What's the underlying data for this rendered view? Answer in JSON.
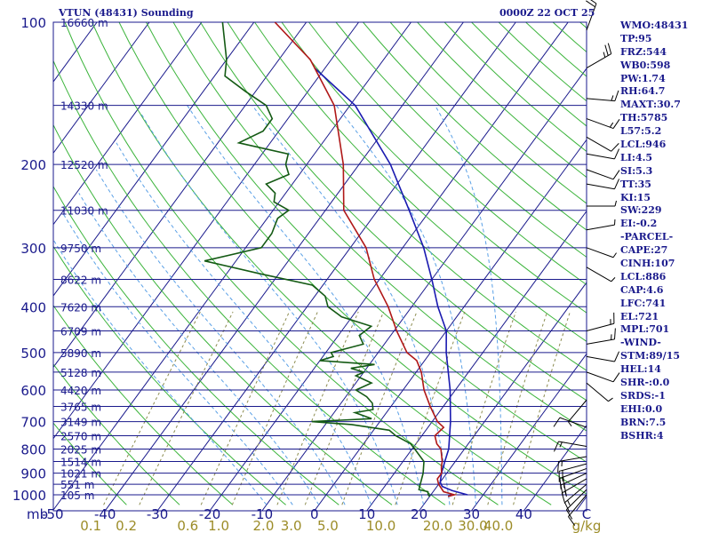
{
  "header": {
    "title": "VTUN (48431) Sounding",
    "time": "0000Z 22 OCT 25"
  },
  "indices": [
    "WMO:48431",
    "TP:95",
    "FRZ:544",
    "WB0:598",
    "PW:1.74",
    "RH:64.7",
    "MAXT:30.7",
    "TH:5785",
    "L57:5.2",
    "LCL:946",
    "LI:4.5",
    "SI:5.3",
    "TT:35",
    "KI:15",
    "SW:229",
    "EI:-0.2",
    "-PARCEL-",
    "CAPE:27",
    "CINH:107",
    "LCL:886",
    "CAP:4.6",
    "LFC:741",
    "EL:721",
    "MPL:701",
    "-WIND-",
    "STM:89/15",
    "HEL:14",
    "SHR-:0.0",
    "SRDS:-1",
    "EHI:0.0",
    "BRN:7.5",
    "BSHR:4"
  ],
  "colors": {
    "isobar": "#1a1a8c",
    "isotherm": "#1a1a8c",
    "dry_adiabat": "#3cb43c",
    "moist_adiabat": "#5aa0e6",
    "mixing_ratio": "#8c8c50",
    "temperature": "#b01818",
    "dewpoint": "#145a14",
    "parcel": "#1a1ab0",
    "label_blue": "#1a1a8c",
    "label_olive": "#9c8c28",
    "wind_barb": "#000000"
  },
  "chart_data": {
    "type": "skew-t",
    "x_unit_label": "C",
    "y_unit_label": "mb",
    "mixing_ratio_unit_label": "g/kg",
    "temperature_ticks": [
      "-50",
      "-40",
      "-30",
      "-20",
      "-10",
      "0",
      "10",
      "20",
      "30",
      "40",
      "C"
    ],
    "mixing_ratio_ticks": [
      "0.1",
      "0.2",
      "0.6",
      "1.0",
      "2.0",
      "3.0",
      "5.0",
      "10.0",
      "20.0",
      "30.0",
      "40.0"
    ],
    "pressure_ticks": [
      {
        "p": 100,
        "label": "100"
      },
      {
        "p": 200,
        "label": "200"
      },
      {
        "p": 300,
        "label": "300"
      },
      {
        "p": 400,
        "label": "400"
      },
      {
        "p": 500,
        "label": "500"
      },
      {
        "p": 600,
        "label": "600"
      },
      {
        "p": 700,
        "label": "700"
      },
      {
        "p": 800,
        "label": "800"
      },
      {
        "p": 900,
        "label": "900"
      },
      {
        "p": 1000,
        "label": "1000"
      }
    ],
    "height_labels": [
      {
        "p": 100,
        "label": "16660 m"
      },
      {
        "p": 150,
        "label": "14330 m"
      },
      {
        "p": 200,
        "label": "12520 m"
      },
      {
        "p": 250,
        "label": "11030 m"
      },
      {
        "p": 300,
        "label": "9750 m"
      },
      {
        "p": 350,
        "label": "8622 m"
      },
      {
        "p": 400,
        "label": "7620 m"
      },
      {
        "p": 450,
        "label": "6709 m"
      },
      {
        "p": 500,
        "label": "5890 m"
      },
      {
        "p": 550,
        "label": "5128 m"
      },
      {
        "p": 600,
        "label": "4420 m"
      },
      {
        "p": 650,
        "label": "3765 m"
      },
      {
        "p": 700,
        "label": "3149 m"
      },
      {
        "p": 750,
        "label": "2570 m"
      },
      {
        "p": 800,
        "label": "2025 m"
      },
      {
        "p": 850,
        "label": "1514 m"
      },
      {
        "p": 900,
        "label": "1021 m"
      },
      {
        "p": 950,
        "label": "551 m"
      },
      {
        "p": 1000,
        "label": "105 m"
      }
    ],
    "temperature_profile": [
      [
        1008,
        23.5
      ],
      [
        1000,
        24.5
      ],
      [
        985,
        22
      ],
      [
        950,
        20
      ],
      [
        925,
        19
      ],
      [
        900,
        19
      ],
      [
        870,
        18
      ],
      [
        850,
        17.5
      ],
      [
        800,
        15.5
      ],
      [
        780,
        14
      ],
      [
        750,
        12.5
      ],
      [
        720,
        13
      ],
      [
        700,
        11
      ],
      [
        650,
        7.5
      ],
      [
        600,
        4
      ],
      [
        550,
        1
      ],
      [
        520,
        -1.5
      ],
      [
        500,
        -4.5
      ],
      [
        450,
        -9.5
      ],
      [
        400,
        -14.5
      ],
      [
        350,
        -21
      ],
      [
        300,
        -27
      ],
      [
        250,
        -36.5
      ],
      [
        200,
        -43
      ],
      [
        150,
        -53
      ],
      [
        120,
        -64
      ],
      [
        100,
        -76
      ]
    ],
    "dewpoint_profile": [
      [
        1008,
        20
      ],
      [
        1000,
        19.5
      ],
      [
        985,
        19
      ],
      [
        975,
        17
      ],
      [
        950,
        16.5
      ],
      [
        900,
        15.5
      ],
      [
        850,
        14
      ],
      [
        800,
        10.5
      ],
      [
        780,
        9
      ],
      [
        750,
        5
      ],
      [
        730,
        3
      ],
      [
        710,
        -5
      ],
      [
        700,
        -13
      ],
      [
        690,
        -2
      ],
      [
        670,
        -6
      ],
      [
        660,
        -3
      ],
      [
        640,
        -4
      ],
      [
        620,
        -6
      ],
      [
        600,
        -9
      ],
      [
        580,
        -7
      ],
      [
        560,
        -11
      ],
      [
        550,
        -10
      ],
      [
        540,
        -13
      ],
      [
        530,
        -9
      ],
      [
        520,
        -20
      ],
      [
        510,
        -18
      ],
      [
        500,
        -19
      ],
      [
        480,
        -14
      ],
      [
        460,
        -16
      ],
      [
        440,
        -15
      ],
      [
        420,
        -22
      ],
      [
        400,
        -26
      ],
      [
        380,
        -28
      ],
      [
        360,
        -32
      ],
      [
        340,
        -44
      ],
      [
        320,
        -56
      ],
      [
        300,
        -47
      ],
      [
        280,
        -47
      ],
      [
        260,
        -48
      ],
      [
        250,
        -47
      ],
      [
        240,
        -51
      ],
      [
        230,
        -52
      ],
      [
        220,
        -55
      ],
      [
        210,
        -52
      ],
      [
        200,
        -54
      ],
      [
        190,
        -55
      ],
      [
        180,
        -66
      ],
      [
        170,
        -63
      ],
      [
        160,
        -63
      ],
      [
        150,
        -66
      ],
      [
        140,
        -72
      ],
      [
        130,
        -78
      ],
      [
        120,
        -80
      ],
      [
        100,
        -86
      ]
    ],
    "parcel_profile": [
      [
        1000,
        27
      ],
      [
        980,
        23.5
      ],
      [
        960,
        21
      ],
      [
        940,
        20
      ],
      [
        900,
        19
      ],
      [
        850,
        18
      ],
      [
        800,
        17
      ],
      [
        700,
        13.5
      ],
      [
        600,
        9
      ],
      [
        500,
        3
      ],
      [
        450,
        0
      ],
      [
        400,
        -5
      ],
      [
        350,
        -10
      ],
      [
        300,
        -16
      ],
      [
        250,
        -24
      ],
      [
        200,
        -34
      ],
      [
        150,
        -49
      ],
      [
        125,
        -62
      ]
    ],
    "wind_barbs": [
      {
        "p": 104,
        "dir": 20,
        "spd": 20
      },
      {
        "p": 125,
        "dir": 60,
        "spd": 25
      },
      {
        "p": 145,
        "dir": 95,
        "spd": 15
      },
      {
        "p": 160,
        "dir": 110,
        "spd": 15
      },
      {
        "p": 175,
        "dir": 120,
        "spd": 10
      },
      {
        "p": 190,
        "dir": 100,
        "spd": 10
      },
      {
        "p": 205,
        "dir": 110,
        "spd": 10
      },
      {
        "p": 220,
        "dir": 100,
        "spd": 10
      },
      {
        "p": 245,
        "dir": 90,
        "spd": 5
      },
      {
        "p": 275,
        "dir": 80,
        "spd": 5
      },
      {
        "p": 300,
        "dir": 110,
        "spd": 5
      },
      {
        "p": 330,
        "dir": 120,
        "spd": 5
      },
      {
        "p": 450,
        "dir": 75,
        "spd": 15
      },
      {
        "p": 480,
        "dir": 80,
        "spd": 15
      },
      {
        "p": 510,
        "dir": 100,
        "spd": 10
      },
      {
        "p": 550,
        "dir": 110,
        "spd": 10
      },
      {
        "p": 580,
        "dir": 130,
        "spd": 5
      },
      {
        "p": 630,
        "dir": 220,
        "spd": 5
      },
      {
        "p": 720,
        "dir": 290,
        "spd": 10
      },
      {
        "p": 790,
        "dir": 280,
        "spd": 15
      },
      {
        "p": 830,
        "dir": 260,
        "spd": 15
      },
      {
        "p": 860,
        "dir": 255,
        "spd": 20
      },
      {
        "p": 880,
        "dir": 250,
        "spd": 20
      },
      {
        "p": 900,
        "dir": 245,
        "spd": 20
      },
      {
        "p": 925,
        "dir": 240,
        "spd": 15
      },
      {
        "p": 950,
        "dir": 230,
        "spd": 15
      },
      {
        "p": 975,
        "dir": 225,
        "spd": 10
      },
      {
        "p": 1000,
        "dir": 220,
        "spd": 10
      }
    ]
  }
}
